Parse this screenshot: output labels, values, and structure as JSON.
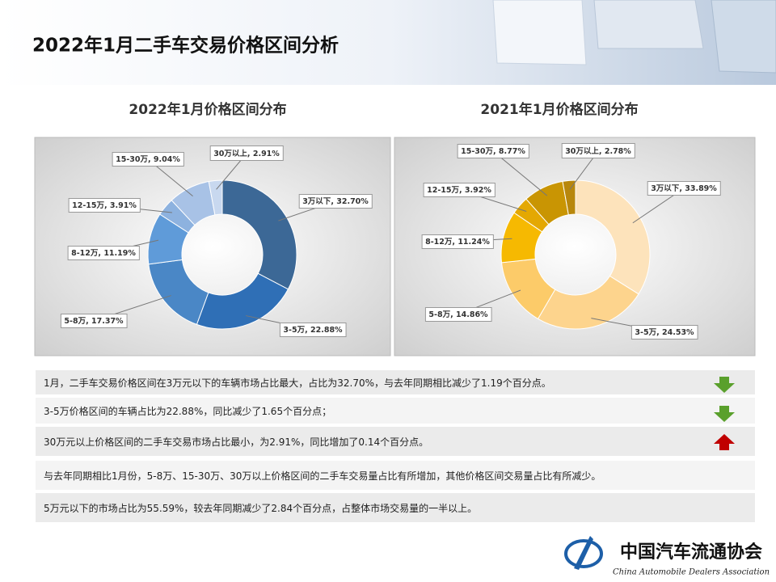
{
  "title": "2022年1月二手车交易价格区间分析",
  "chart_data": [
    {
      "type": "donut",
      "title": "2022年1月价格区间分布",
      "categories": [
        "3万以下",
        "3-5万",
        "5-8万",
        "8-12万",
        "12-15万",
        "15-30万",
        "30万以上"
      ],
      "values": [
        32.7,
        22.88,
        17.37,
        11.19,
        3.91,
        9.04,
        2.91
      ],
      "value_labels": [
        "32.70%",
        "22.88%",
        "17.37%",
        "11.19%",
        "3.91%",
        "9.04%",
        "2.91%"
      ],
      "colors": [
        "#3c6896",
        "#2f6fb6",
        "#4a87c6",
        "#5f9bd9",
        "#8db2df",
        "#a8c2e6",
        "#c8d8ef"
      ]
    },
    {
      "type": "donut",
      "title": "2021年1月价格区间分布",
      "categories": [
        "3万以下",
        "3-5万",
        "5-8万",
        "8-12万",
        "12-15万",
        "15-30万",
        "30万以上"
      ],
      "values": [
        33.89,
        24.53,
        14.86,
        11.24,
        3.92,
        8.77,
        2.78
      ],
      "value_labels": [
        "33.89%",
        "24.53%",
        "14.86%",
        "11.24%",
        "3.92%",
        "8.77%",
        "2.78%"
      ],
      "colors": [
        "#fde3bb",
        "#fdd48d",
        "#fccb69",
        "#f6b901",
        "#e4a802",
        "#c99503",
        "#b8870c"
      ]
    }
  ],
  "notes": [
    "1月，二手车交易价格区间在3万元以下的车辆市场占比最大，占比为32.70%，与去年同期相比减少了1.19个百分点。",
    "3-5万价格区间的车辆占比为22.88%，同比减少了1.65个百分点；",
    "30万元以上价格区间的二手车交易市场占比最小，为2.91%，同比增加了0.14个百分点。",
    "与去年同期相比1月份，5-8万、15-30万、30万以上价格区间的二手车交易量占比有所增加，其他价格区间交易量占比有所减少。",
    "5万元以下的市场占比为55.59%，较去年同期减少了2.84个百分点，占整体市场交易量的一半以上。"
  ],
  "footer": {
    "org_name": "中国汽车流通协会",
    "org_name_en": "China Automobile Dealers Association"
  }
}
